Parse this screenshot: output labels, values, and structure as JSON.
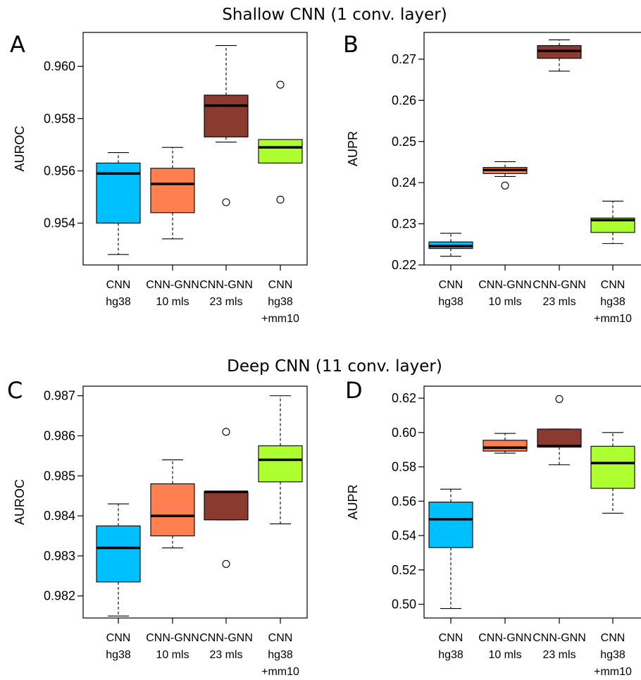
{
  "section_titles": {
    "top": "Shallow CNN (1 conv. layer)",
    "bottom": "Deep CNN (11 conv. layer)"
  },
  "colors": {
    "CNN hg38": "#00bfff",
    "CNN-GNN 10 mls": "#ff7f50",
    "CNN-GNN 23 mls": "#8b3a2f",
    "CNN hg38 +mm10": "#adff2f"
  },
  "chart_data": [
    {
      "type": "box",
      "panel": "A",
      "ylabel": "AUROC",
      "ylim": [
        0.9524,
        0.9613
      ],
      "yticks": [
        "0.954",
        "0.956",
        "0.958",
        "0.960"
      ],
      "categories": [
        [
          "CNN",
          "hg38"
        ],
        [
          "CNN-GNN",
          "10 mls"
        ],
        [
          "CNN-GNN",
          "23 mls"
        ],
        [
          "CNN",
          "hg38",
          "+mm10"
        ]
      ],
      "boxes": [
        {
          "whisker_low": 0.9528,
          "q1": 0.954,
          "median": 0.9559,
          "q3": 0.9563,
          "whisker_high": 0.9567,
          "outliers": []
        },
        {
          "whisker_low": 0.9534,
          "q1": 0.9544,
          "median": 0.9555,
          "q3": 0.9561,
          "whisker_high": 0.9569,
          "outliers": []
        },
        {
          "whisker_low": 0.9571,
          "q1": 0.9573,
          "median": 0.9585,
          "q3": 0.9589,
          "whisker_high": 0.9608,
          "outliers": [
            0.9548
          ]
        },
        {
          "whisker_low": 0.9563,
          "q1": 0.9563,
          "median": 0.9569,
          "q3": 0.9572,
          "whisker_high": 0.9572,
          "outliers": [
            0.9593,
            0.9549
          ]
        }
      ]
    },
    {
      "type": "box",
      "panel": "B",
      "ylabel": "AUPR",
      "ylim": [
        0.22,
        0.2765
      ],
      "yticks": [
        "0.22",
        "0.23",
        "0.24",
        "0.25",
        "0.26",
        "0.27"
      ],
      "categories": [
        [
          "CNN",
          "hg38"
        ],
        [
          "CNN-GNN",
          "10 mls"
        ],
        [
          "CNN-GNN",
          "23 mls"
        ],
        [
          "CNN",
          "hg38",
          "+mm10"
        ]
      ],
      "boxes": [
        {
          "whisker_low": 0.2221,
          "q1": 0.224,
          "median": 0.2246,
          "q3": 0.2256,
          "whisker_high": 0.2277,
          "outliers": []
        },
        {
          "whisker_low": 0.2415,
          "q1": 0.2422,
          "median": 0.2431,
          "q3": 0.2437,
          "whisker_high": 0.2451,
          "outliers": [
            0.2393
          ]
        },
        {
          "whisker_low": 0.2671,
          "q1": 0.2702,
          "median": 0.272,
          "q3": 0.2733,
          "whisker_high": 0.2747,
          "outliers": []
        },
        {
          "whisker_low": 0.2252,
          "q1": 0.2279,
          "median": 0.2309,
          "q3": 0.2314,
          "whisker_high": 0.2355,
          "outliers": []
        }
      ]
    },
    {
      "type": "box",
      "panel": "C",
      "ylabel": "AUROC",
      "ylim": [
        0.98145,
        0.98724
      ],
      "yticks": [
        "0.982",
        "0.983",
        "0.984",
        "0.985",
        "0.986",
        "0.987"
      ],
      "categories": [
        [
          "CNN",
          "hg38"
        ],
        [
          "CNN-GNN",
          "10 mls"
        ],
        [
          "CNN-GNN",
          "23 mls"
        ],
        [
          "CNN",
          "hg38",
          "+mm10"
        ]
      ],
      "boxes": [
        {
          "whisker_low": 0.9815,
          "q1": 0.98235,
          "median": 0.9832,
          "q3": 0.98375,
          "whisker_high": 0.9843,
          "outliers": []
        },
        {
          "whisker_low": 0.9832,
          "q1": 0.9835,
          "median": 0.984,
          "q3": 0.9848,
          "whisker_high": 0.9854,
          "outliers": []
        },
        {
          "whisker_low": 0.9839,
          "q1": 0.9839,
          "median": 0.9846,
          "q3": 0.9846,
          "whisker_high": 0.9846,
          "outliers": [
            0.9861,
            0.9828
          ]
        },
        {
          "whisker_low": 0.9838,
          "q1": 0.98485,
          "median": 0.9854,
          "q3": 0.98575,
          "whisker_high": 0.987,
          "outliers": []
        }
      ]
    },
    {
      "type": "box",
      "panel": "D",
      "ylabel": "AUPR",
      "ylim": [
        0.492,
        0.627
      ],
      "yticks": [
        "0.50",
        "0.52",
        "0.54",
        "0.56",
        "0.58",
        "0.60",
        "0.62"
      ],
      "categories": [
        [
          "CNN",
          "hg38"
        ],
        [
          "CNN-GNN",
          "10 mls"
        ],
        [
          "CNN-GNN",
          "23 mls"
        ],
        [
          "CNN",
          "hg38",
          "+mm10"
        ]
      ],
      "boxes": [
        {
          "whisker_low": 0.4975,
          "q1": 0.533,
          "median": 0.5495,
          "q3": 0.5595,
          "whisker_high": 0.567,
          "outliers": []
        },
        {
          "whisker_low": 0.588,
          "q1": 0.5892,
          "median": 0.5912,
          "q3": 0.5955,
          "whisker_high": 0.5995,
          "outliers": []
        },
        {
          "whisker_low": 0.5812,
          "q1": 0.5915,
          "median": 0.5922,
          "q3": 0.602,
          "whisker_high": 0.602,
          "outliers": [
            0.6195
          ]
        },
        {
          "whisker_low": 0.553,
          "q1": 0.5675,
          "median": 0.5822,
          "q3": 0.592,
          "whisker_high": 0.6,
          "outliers": []
        }
      ]
    }
  ]
}
